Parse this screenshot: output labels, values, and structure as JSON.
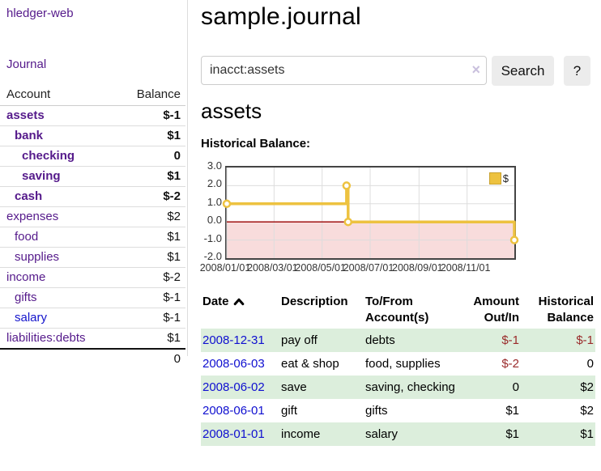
{
  "app": {
    "brand": "hledger-web"
  },
  "sidebar": {
    "nav_journal": "Journal",
    "columns": {
      "account": "Account",
      "balance": "Balance"
    },
    "accounts": [
      {
        "name": "assets",
        "balance": "$-1"
      },
      {
        "name": "bank",
        "balance": "$1"
      },
      {
        "name": "checking",
        "balance": "0"
      },
      {
        "name": "saving",
        "balance": "$1"
      },
      {
        "name": "cash",
        "balance": "$-2"
      },
      {
        "name": "expenses",
        "balance": "$2"
      },
      {
        "name": "food",
        "balance": "$1"
      },
      {
        "name": "supplies",
        "balance": "$1"
      },
      {
        "name": "income",
        "balance": "$-2"
      },
      {
        "name": "gifts",
        "balance": "$-1"
      },
      {
        "name": "salary",
        "balance": "$-1"
      },
      {
        "name": "liabilities:debts",
        "balance": "$1"
      }
    ],
    "total": "0"
  },
  "header": {
    "title": "sample.journal"
  },
  "search": {
    "value": "inacct:assets",
    "clear_icon": "×",
    "button_label": "Search",
    "help_label": "?"
  },
  "account_page": {
    "title": "assets",
    "chart_caption": "Historical Balance:"
  },
  "chart_data": {
    "type": "line",
    "title": "Historical Balance",
    "steps": true,
    "series": [
      {
        "name": "$",
        "color": "#edc240",
        "points": [
          {
            "x": "2008-01-01",
            "y": 1
          },
          {
            "x": "2008-06-01",
            "y": 2
          },
          {
            "x": "2008-06-03",
            "y": 0
          },
          {
            "x": "2008-12-31",
            "y": -1
          }
        ]
      }
    ],
    "xlim": [
      "2008-01-01",
      "2008-12-31"
    ],
    "ylim": [
      -2,
      3
    ],
    "yticks": [
      "3.0",
      "2.0",
      "1.0",
      "0.0",
      "-1.0",
      "-2.0"
    ],
    "xticks": [
      {
        "x": "2008-01-01",
        "label": "2008/01/01"
      },
      {
        "x": "2008-03-01",
        "label": "2008/03/01"
      },
      {
        "x": "2008-05-01",
        "label": "2008/05/01"
      },
      {
        "x": "2008-07-01",
        "label": "2008/07/01"
      },
      {
        "x": "2008-09-01",
        "label": "2008/09/01"
      },
      {
        "x": "2008-11-01",
        "label": "2008/11/01"
      }
    ],
    "legend_position": "top-right",
    "grid": true,
    "grid_color": "#dddddd",
    "border_color": "#444444",
    "negative_region_color": "#f8dcdc",
    "zero_line_color": "#990000"
  },
  "register": {
    "headers": {
      "date": "Date",
      "description": "Description",
      "accounts": "To/From Account(s)",
      "amount": "Amount Out/In",
      "balance": "Historical Balance"
    },
    "rows": [
      {
        "date": "2008-12-31",
        "description": "pay off",
        "accounts": "debts",
        "amount": "$-1",
        "balance": "$-1"
      },
      {
        "date": "2008-06-03",
        "description": "eat & shop",
        "accounts": "food, supplies",
        "amount": "$-2",
        "balance": "0"
      },
      {
        "date": "2008-06-02",
        "description": "save",
        "accounts": "saving, checking",
        "amount": "0",
        "balance": "$2"
      },
      {
        "date": "2008-06-01",
        "description": "gift",
        "accounts": "gifts",
        "amount": "$1",
        "balance": "$2"
      },
      {
        "date": "2008-01-01",
        "description": "income",
        "accounts": "salary",
        "amount": "$1",
        "balance": "$1"
      }
    ]
  }
}
